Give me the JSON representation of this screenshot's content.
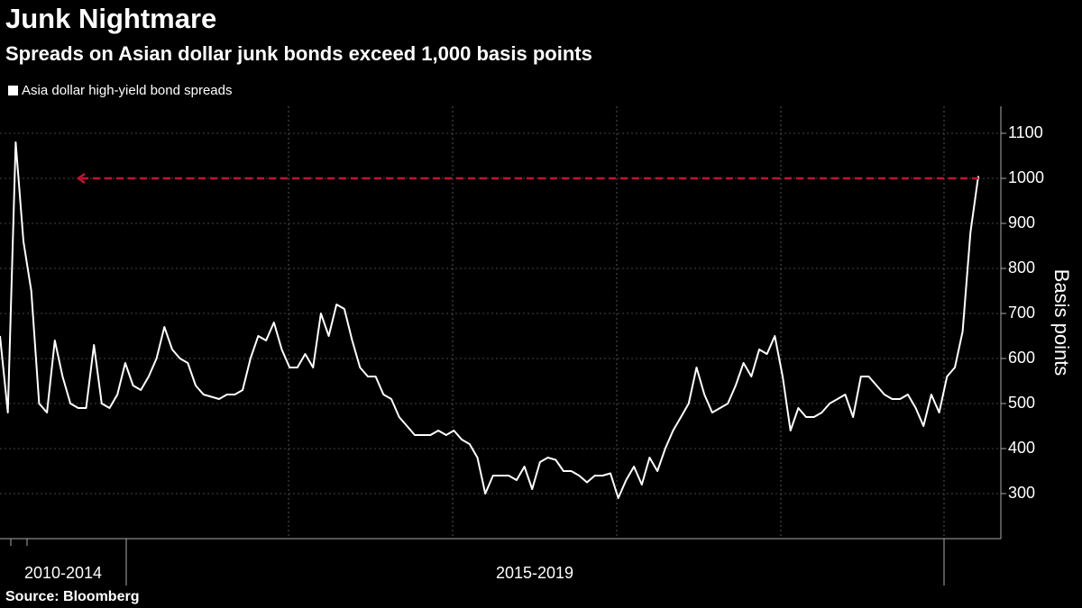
{
  "chart_data": {
    "type": "line",
    "title": "Junk Nightmare",
    "subtitle": "Spreads on Asian dollar junk bonds exceed 1,000 basis points",
    "y_axis_label": "Basis points",
    "source": "Source: Bloomberg",
    "x_group_labels": [
      "2010-2014",
      "2015-2019"
    ],
    "series": [
      {
        "name": "Asia dollar high-yield bond spreads",
        "color": "#ffffff",
        "values": [
          650,
          480,
          1080,
          860,
          750,
          500,
          480,
          640,
          560,
          500,
          490,
          490,
          630,
          500,
          490,
          520,
          590,
          540,
          530,
          560,
          600,
          670,
          620,
          600,
          590,
          540,
          520,
          515,
          510,
          520,
          520,
          530,
          600,
          650,
          640,
          680,
          620,
          580,
          580,
          610,
          580,
          700,
          650,
          720,
          710,
          640,
          580,
          560,
          560,
          520,
          510,
          470,
          450,
          430,
          430,
          430,
          440,
          430,
          440,
          420,
          410,
          380,
          300,
          340,
          340,
          340,
          330,
          360,
          310,
          370,
          380,
          375,
          350,
          350,
          340,
          325,
          340,
          340,
          345,
          290,
          330,
          360,
          320,
          380,
          350,
          400,
          440,
          470,
          500,
          580,
          520,
          480,
          490,
          500,
          540,
          590,
          560,
          620,
          610,
          650,
          560,
          440,
          490,
          470,
          470,
          480,
          500,
          510,
          520,
          470,
          560,
          560,
          540,
          520,
          510,
          510,
          520,
          490,
          450,
          520,
          480,
          560,
          580,
          660,
          880,
          1005
        ]
      }
    ],
    "reference_line": 1000,
    "reference_color": "#c8102e",
    "ylim": [
      200,
      1160
    ],
    "yticks": [
      300,
      400,
      500,
      600,
      700,
      800,
      900,
      1000,
      1100
    ],
    "grid": true
  }
}
